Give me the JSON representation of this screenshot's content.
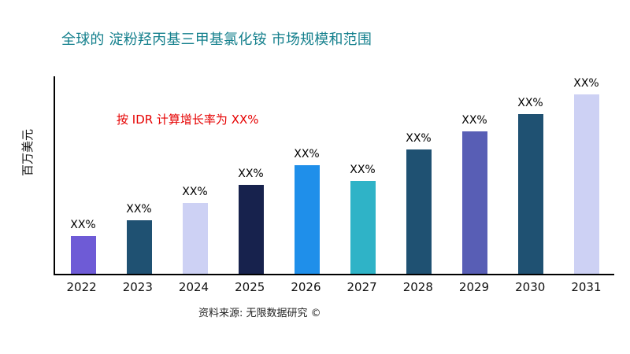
{
  "chart_data": {
    "type": "bar",
    "title": "全球的 淀粉羟丙基三甲基氯化铵 市场规模和范围",
    "title_color": "#15808d",
    "ylabel": "百万美元",
    "xlabel": "",
    "annotation": "按 IDR 计算增长率为 XX%",
    "annotation_color": "#e60000",
    "source": "资料来源: 无限数据研究 ©",
    "categories": [
      "2022",
      "2023",
      "2024",
      "2025",
      "2026",
      "2027",
      "2028",
      "2029",
      "2030",
      "2031"
    ],
    "values": [
      19,
      27,
      36,
      45,
      55,
      47,
      63,
      72,
      81,
      91
    ],
    "bar_labels": [
      "XX%",
      "XX%",
      "XX%",
      "XX%",
      "XX%",
      "XX%",
      "XX%",
      "XX%",
      "XX%",
      "XX%"
    ],
    "bar_colors": [
      "#6e5bd6",
      "#1f5172",
      "#cdd1f4",
      "#17224d",
      "#1f8fea",
      "#2fb3c7",
      "#1f5172",
      "#585eb5",
      "#1f5172",
      "#cdd1f4"
    ],
    "ylim": [
      0,
      100
    ],
    "grid": false,
    "legend": false
  }
}
